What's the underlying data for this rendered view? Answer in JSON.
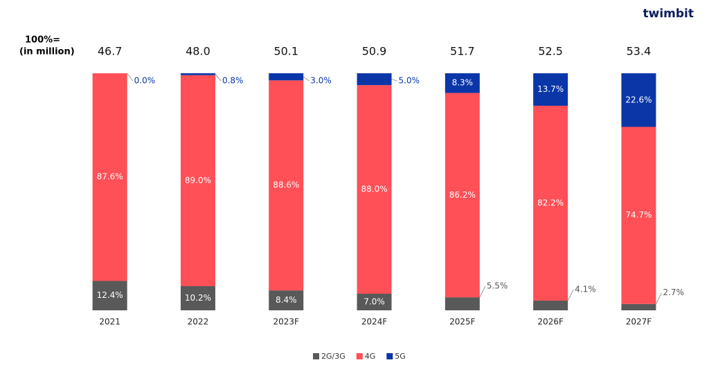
{
  "brand": "twimbit",
  "chart_data": {
    "type": "stacked_bar",
    "total_title": [
      "100%=",
      "(in million)"
    ],
    "categories": [
      "2021",
      "2022",
      "2023F",
      "2024F",
      "2025F",
      "2026F",
      "2027F"
    ],
    "totals": {
      "values": [
        46.7,
        48.0,
        50.1,
        50.9,
        51.7,
        52.5,
        53.4
      ],
      "value_labels": [
        "46.7",
        "48.0",
        "50.1",
        "50.9",
        "51.7",
        "52.5",
        "53.4"
      ]
    },
    "ylim": [
      0,
      100
    ],
    "series": [
      {
        "name": "2G/3G",
        "color": "#595959",
        "values": [
          12.4,
          10.2,
          8.4,
          7.0,
          5.5,
          4.1,
          2.7
        ],
        "value_labels": [
          "12.4%",
          "10.2%",
          "8.4%",
          "7.0%",
          "5.5%",
          "4.1%",
          "2.7%"
        ]
      },
      {
        "name": "4G",
        "color": "#ff4f57",
        "values": [
          87.6,
          89.0,
          88.6,
          88.0,
          86.2,
          82.2,
          74.7
        ],
        "value_labels": [
          "87.6%",
          "89.0%",
          "88.6%",
          "88.0%",
          "86.2%",
          "82.2%",
          "74.7%"
        ]
      },
      {
        "name": "5G",
        "color": "#0a36a8",
        "values": [
          0.0,
          0.8,
          3.0,
          5.0,
          8.3,
          13.7,
          22.6
        ],
        "value_labels": [
          "0.0%",
          "0.8%",
          "3.0%",
          "5.0%",
          "8.3%",
          "13.7%",
          "22.6%"
        ]
      }
    ]
  }
}
